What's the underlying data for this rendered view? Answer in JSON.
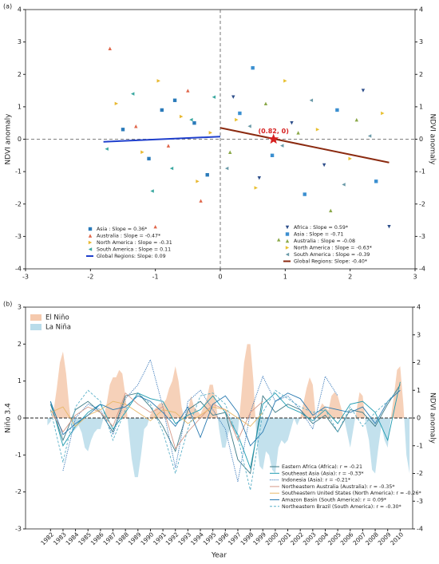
{
  "chart_data": [
    {
      "type": "scatter",
      "label": "(a)",
      "ylabel": "NDVI anomaly",
      "y2label": "NDVI anomaly",
      "xlim": [
        -3,
        3
      ],
      "xticks": [
        -3,
        -2,
        -1,
        0,
        1,
        2,
        3
      ],
      "ylim": [
        -4,
        4
      ],
      "yticks": [
        -4,
        -3,
        -2,
        -1,
        0,
        1,
        2,
        3,
        4
      ],
      "y2lim": [
        -4,
        4
      ],
      "y2ticks": [
        -4,
        -3,
        -2,
        -1,
        0,
        1,
        2,
        3,
        4
      ],
      "annotation": {
        "text": "(0.82, 0)",
        "x": 0.82,
        "y": 0,
        "color": "#d62020"
      },
      "series": [
        {
          "name": "Asia : Slope = 0.36*",
          "color": "#2b7bba",
          "marker": "square",
          "legend": "lower left",
          "x": [
            -1.5,
            -1.1,
            -0.7,
            -0.4,
            -0.2,
            -0.9
          ],
          "values": [
            0.3,
            -0.6,
            1.2,
            0.5,
            -1.1,
            0.9
          ]
        },
        {
          "name": "Australia : Slope = -0.47*",
          "color": "#e0664a",
          "marker": "triangle-up",
          "legend": "lower left",
          "x": [
            -1.7,
            -1.3,
            -0.8,
            -0.5,
            -0.3,
            -1.0
          ],
          "values": [
            2.8,
            0.4,
            -0.2,
            1.5,
            -1.9,
            -2.7
          ]
        },
        {
          "name": "North America : Slope = -0.31",
          "color": "#e8b830",
          "marker": "triangle-right",
          "legend": "lower left",
          "x": [
            -1.6,
            -1.2,
            -0.6,
            -0.35,
            -0.15,
            -0.95
          ],
          "values": [
            1.1,
            -0.4,
            0.7,
            -1.3,
            0.2,
            1.8
          ]
        },
        {
          "name": "South America : Slope = 0.11",
          "color": "#3aa8a0",
          "marker": "triangle-left",
          "legend": "lower left",
          "x": [
            -1.75,
            -1.35,
            -0.75,
            -0.45,
            -0.1,
            -1.05
          ],
          "values": [
            -0.3,
            1.4,
            -0.9,
            0.6,
            1.3,
            -1.6
          ]
        },
        {
          "name": "Global Regions: Slope: 0.09",
          "color": "#1f3fcc",
          "marker": "line",
          "legend": "lower left",
          "x": [
            -1.8,
            0
          ],
          "values": [
            -0.08,
            0.08
          ]
        },
        {
          "name": "Africa : Slope = 0.59*",
          "color": "#2d4e8a",
          "marker": "triangle-down",
          "legend": "lower right",
          "x": [
            0.2,
            0.6,
            1.1,
            1.6,
            2.2,
            2.6
          ],
          "values": [
            1.3,
            -1.2,
            0.5,
            -0.8,
            1.5,
            -2.7
          ]
        },
        {
          "name": "Asia : Slope = -0.71",
          "color": "#3b8fd0",
          "marker": "square",
          "legend": "lower right",
          "x": [
            0.3,
            0.8,
            1.3,
            1.8,
            2.4,
            0.5
          ],
          "values": [
            0.8,
            -0.5,
            -1.7,
            0.9,
            -1.3,
            2.2
          ]
        },
        {
          "name": "Australia : Slope = -0.08",
          "color": "#8aa848",
          "marker": "triangle-up",
          "legend": "lower right",
          "x": [
            0.15,
            0.7,
            1.2,
            1.7,
            2.1,
            0.9
          ],
          "values": [
            -0.4,
            1.1,
            0.2,
            -2.2,
            0.6,
            -3.1
          ]
        },
        {
          "name": "North America : Slope = -0.63*",
          "color": "#e8c030",
          "marker": "triangle-right",
          "legend": "lower right",
          "x": [
            0.25,
            0.55,
            1.0,
            1.5,
            2.0,
            2.5
          ],
          "values": [
            0.6,
            -1.5,
            1.8,
            0.3,
            -0.6,
            0.8
          ]
        },
        {
          "name": "South America : Slope = -0.39",
          "color": "#6a9aa8",
          "marker": "triangle-left",
          "legend": "lower right",
          "x": [
            0.1,
            0.45,
            0.95,
            1.4,
            1.9,
            2.3
          ],
          "values": [
            -0.9,
            0.4,
            -0.2,
            1.2,
            -1.4,
            0.1
          ]
        },
        {
          "name": "Global Regions: Slope: -0.40*",
          "color": "#8b2a10",
          "marker": "line",
          "legend": "lower right",
          "x": [
            0,
            2.6
          ],
          "values": [
            0.35,
            -0.72
          ]
        }
      ]
    },
    {
      "type": "line",
      "label": "(b)",
      "xlabel": "Year",
      "ylabel": "Niño 3.4",
      "y2label": "NDVI anomaly",
      "xlim": [
        1980,
        2011
      ],
      "xticks": [
        1982,
        1983,
        1984,
        1985,
        1986,
        1987,
        1988,
        1989,
        1990,
        1991,
        1992,
        1993,
        1994,
        1995,
        1996,
        1997,
        1998,
        1999,
        2000,
        2001,
        2002,
        2003,
        2004,
        2005,
        2006,
        2007,
        2008,
        2009,
        2010
      ],
      "ylim": [
        -3,
        3
      ],
      "yticks": [
        -3,
        -2,
        -1,
        0,
        1,
        2,
        3
      ],
      "y2lim": [
        -4,
        4
      ],
      "y2ticks": [
        -4,
        -3,
        -2,
        -1,
        0,
        1,
        2,
        3,
        4
      ],
      "fill_legend": [
        {
          "name": "El Niño",
          "color": "#f5c9ad"
        },
        {
          "name": "La Niña",
          "color": "#b9dcea"
        }
      ],
      "enso": {
        "x": [
          1981.75,
          1982,
          1982.25,
          1982.5,
          1982.75,
          1983,
          1983.25,
          1983.5,
          1983.75,
          1984,
          1984.25,
          1984.5,
          1984.75,
          1985,
          1985.25,
          1985.5,
          1985.75,
          1986,
          1986.25,
          1986.5,
          1986.75,
          1987,
          1987.25,
          1987.5,
          1987.75,
          1988,
          1988.25,
          1988.5,
          1988.75,
          1989,
          1989.25,
          1989.5,
          1989.75,
          1990,
          1990.25,
          1990.5,
          1990.75,
          1991,
          1991.25,
          1991.5,
          1991.75,
          1992,
          1992.25,
          1992.5,
          1992.75,
          1993,
          1993.25,
          1993.5,
          1993.75,
          1994,
          1994.25,
          1994.5,
          1994.75,
          1995,
          1995.25,
          1995.5,
          1995.75,
          1996,
          1996.25,
          1996.5,
          1996.75,
          1997,
          1997.25,
          1997.5,
          1997.75,
          1998,
          1998.25,
          1998.5,
          1998.75,
          1999,
          1999.25,
          1999.5,
          1999.75,
          2000,
          2000.25,
          2000.5,
          2000.75,
          2001,
          2001.25,
          2001.5,
          2001.75,
          2002,
          2002.25,
          2002.5,
          2002.75,
          2003,
          2003.25,
          2003.5,
          2003.75,
          2004,
          2004.25,
          2004.5,
          2004.75,
          2005,
          2005.25,
          2005.5,
          2005.75,
          2006,
          2006.25,
          2006.5,
          2006.75,
          2007,
          2007.25,
          2007.5,
          2007.75,
          2008,
          2008.25,
          2008.5,
          2008.75,
          2009,
          2009.25,
          2009.5,
          2009.75,
          2010,
          2010.25,
          2010.5,
          2010.75
        ],
        "values": [
          -0.2,
          -0.1,
          0.2,
          0.8,
          1.5,
          1.8,
          1.2,
          0.3,
          -0.4,
          -0.3,
          -0.2,
          -0.4,
          -0.8,
          -0.9,
          -0.6,
          -0.4,
          -0.3,
          -0.3,
          0.0,
          0.4,
          0.9,
          1.1,
          1.1,
          1.3,
          1.2,
          0.6,
          -0.3,
          -1.1,
          -1.6,
          -1.6,
          -1.0,
          -0.3,
          -0.2,
          0.1,
          0.2,
          0.3,
          0.4,
          0.4,
          0.5,
          0.8,
          1.0,
          1.4,
          1.0,
          0.3,
          -0.1,
          0.2,
          0.6,
          0.3,
          0.2,
          0.1,
          0.3,
          0.5,
          0.9,
          0.9,
          0.4,
          -0.3,
          -0.8,
          -0.8,
          -0.4,
          -0.2,
          -0.4,
          -0.4,
          0.5,
          1.5,
          2.0,
          2.0,
          1.0,
          -0.6,
          -1.3,
          -1.4,
          -0.9,
          -1.0,
          -1.4,
          -1.5,
          -0.8,
          -0.6,
          -0.7,
          -0.6,
          -0.3,
          0.0,
          -0.2,
          0.0,
          0.4,
          0.8,
          1.1,
          0.9,
          0.0,
          0.2,
          0.4,
          0.3,
          0.2,
          0.6,
          0.7,
          0.6,
          0.3,
          0.0,
          -0.4,
          -0.8,
          -0.3,
          0.2,
          0.7,
          0.6,
          -0.2,
          -0.6,
          -1.4,
          -1.5,
          -0.8,
          -0.2,
          -0.6,
          -0.8,
          0.0,
          0.6,
          1.3,
          1.4,
          0.4,
          -1.0,
          -1.5
        ]
      },
      "x": [
        1982,
        1983,
        1984,
        1985,
        1986,
        1987,
        1988,
        1989,
        1990,
        1991,
        1992,
        1993,
        1994,
        1995,
        1996,
        1997,
        1998,
        1999,
        2000,
        2001,
        2002,
        2003,
        2004,
        2005,
        2006,
        2007,
        2008,
        2009,
        2010
      ],
      "series": [
        {
          "name": "Eastern Africa (Africa): r = -0.21",
          "color": "#3d7a86",
          "dash": "solid",
          "axis": "y2",
          "values": [
            0.5,
            -0.8,
            0.3,
            0.6,
            0.2,
            -0.5,
            0.8,
            0.9,
            0.4,
            -0.3,
            -1.2,
            0.3,
            0.6,
            0.1,
            0.2,
            -1.5,
            -2.0,
            0.8,
            0.2,
            0.5,
            0.3,
            -0.2,
            0.1,
            -0.5,
            0.3,
            0.2,
            -0.3,
            0.5,
            1.2
          ]
        },
        {
          "name": "Southeast Asia (Asia): r = -0.33*",
          "color": "#1f9bb0",
          "dash": "solid",
          "axis": "y2",
          "values": [
            0.6,
            -1.0,
            -0.3,
            0.2,
            0.5,
            -0.4,
            0.2,
            0.9,
            0.7,
            0.6,
            -0.2,
            0.1,
            0.3,
            0.8,
            0.2,
            -0.6,
            -1.8,
            0.5,
            0.9,
            0.4,
            0.2,
            -0.1,
            0.3,
            -0.2,
            0.5,
            0.6,
            0.2,
            -0.8,
            1.3
          ]
        },
        {
          "name": "Indonesia (Asia): r = -0.21*",
          "color": "#2b6fb5",
          "dash": "dotted",
          "axis": "y2",
          "values": [
            null,
            -1.9,
            0.0,
            0.5,
            0.3,
            -0.6,
            0.7,
            1.2,
            2.1,
            0.4,
            -1.8,
            0.6,
            1.0,
            0.3,
            -0.4,
            -2.3,
            0.2,
            1.5,
            0.6,
            0.8,
            0.3,
            -0.4,
            1.5,
            0.8,
            null,
            null,
            null,
            null,
            null
          ]
        },
        {
          "name": "Northeastern Australia (Australia): r = -0.35*",
          "color": "#d49a8a",
          "dash": "solid",
          "axis": "y2",
          "values": [
            0.3,
            -0.5,
            0.1,
            0.4,
            0.2,
            -0.3,
            0.9,
            0.5,
            0.2,
            0.4,
            -1.1,
            -0.5,
            0.0,
            0.5,
            0.3,
            -0.8,
            0.2,
            0.6,
            null,
            null,
            null,
            null,
            null,
            null,
            null,
            null,
            null,
            null,
            null
          ]
        },
        {
          "name": "Southeastern United States (North America): r = -0.26*",
          "color": "#e8b86a",
          "dash": "solid",
          "axis": "y2",
          "values": [
            0.2,
            0.4,
            -0.3,
            0.1,
            0.3,
            0.6,
            0.5,
            0.2,
            -0.1,
            0.3,
            0.2,
            -0.2,
            0.1,
            0.4,
            0.3,
            0.0,
            -0.3,
            0.2,
            null,
            null,
            null,
            null,
            null,
            null,
            null,
            null,
            null,
            null,
            null
          ]
        },
        {
          "name": "Amazon Basin (South America): r = 0.09*",
          "color": "#2a7ab0",
          "dash": "solid",
          "axis": "y2",
          "values": [
            0.6,
            -0.6,
            -0.2,
            0.1,
            0.5,
            0.3,
            0.4,
            0.8,
            0.6,
            0.2,
            -0.3,
            0.4,
            -0.7,
            0.5,
            0.8,
            0.2,
            -1.0,
            -0.5,
            0.6,
            0.9,
            0.7,
            0.1,
            0.4,
            0.3,
            0.2,
            0.4,
            -0.2,
            0.6,
            1.0
          ]
        },
        {
          "name": "Northeastern Brazil (South America): r = -0.30*",
          "color": "#5ab0c8",
          "dash": "dashed",
          "axis": "y2",
          "values": [
            0.3,
            -1.6,
            0.4,
            1.0,
            0.6,
            -0.8,
            0.3,
            0.9,
            0.5,
            -0.5,
            -2.0,
            -0.4,
            0.8,
            0.9,
            0.5,
            -0.7,
            -2.6,
            0.2,
            1.0,
            0.7,
            0.4,
            0.2,
            0.3,
            -0.5,
            0.4,
            -0.3,
            0.2,
            0.6,
            1.1
          ]
        }
      ]
    }
  ]
}
